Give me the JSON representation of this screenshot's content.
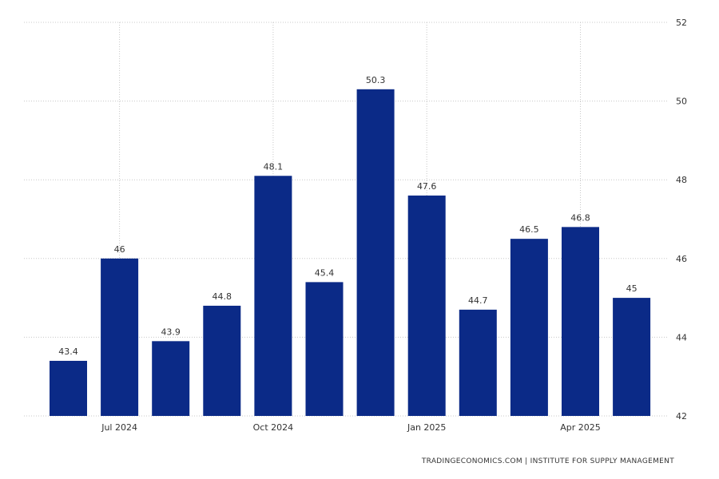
{
  "chart_data": {
    "type": "bar",
    "categories": [
      "Jun 2024",
      "Jul 2024",
      "Aug 2024",
      "Sep 2024",
      "Oct 2024",
      "Nov 2024",
      "Dec 2024",
      "Jan 2025",
      "Feb 2025",
      "Mar 2025",
      "Apr 2025",
      "May 2025"
    ],
    "values": [
      43.4,
      46,
      43.9,
      44.8,
      48.1,
      45.4,
      50.3,
      47.6,
      44.7,
      46.5,
      46.8,
      45
    ],
    "x_tick_labels": [
      {
        "label": "Jul 2024",
        "category": "Jul 2024"
      },
      {
        "label": "Oct 2024",
        "category": "Oct 2024"
      },
      {
        "label": "Jan 2025",
        "category": "Jan 2025"
      },
      {
        "label": "Apr 2025",
        "category": "Apr 2025"
      }
    ],
    "y_ticks": [
      42,
      44,
      46,
      48,
      50,
      52
    ],
    "ylim": [
      42,
      52
    ],
    "y_axis_side": "right",
    "grid": true,
    "bar_color": "#0b2a87",
    "data_labels": true
  },
  "source": "TRADINGECONOMICS.COM  |  INSTITUTE FOR SUPPLY MANAGEMENT"
}
